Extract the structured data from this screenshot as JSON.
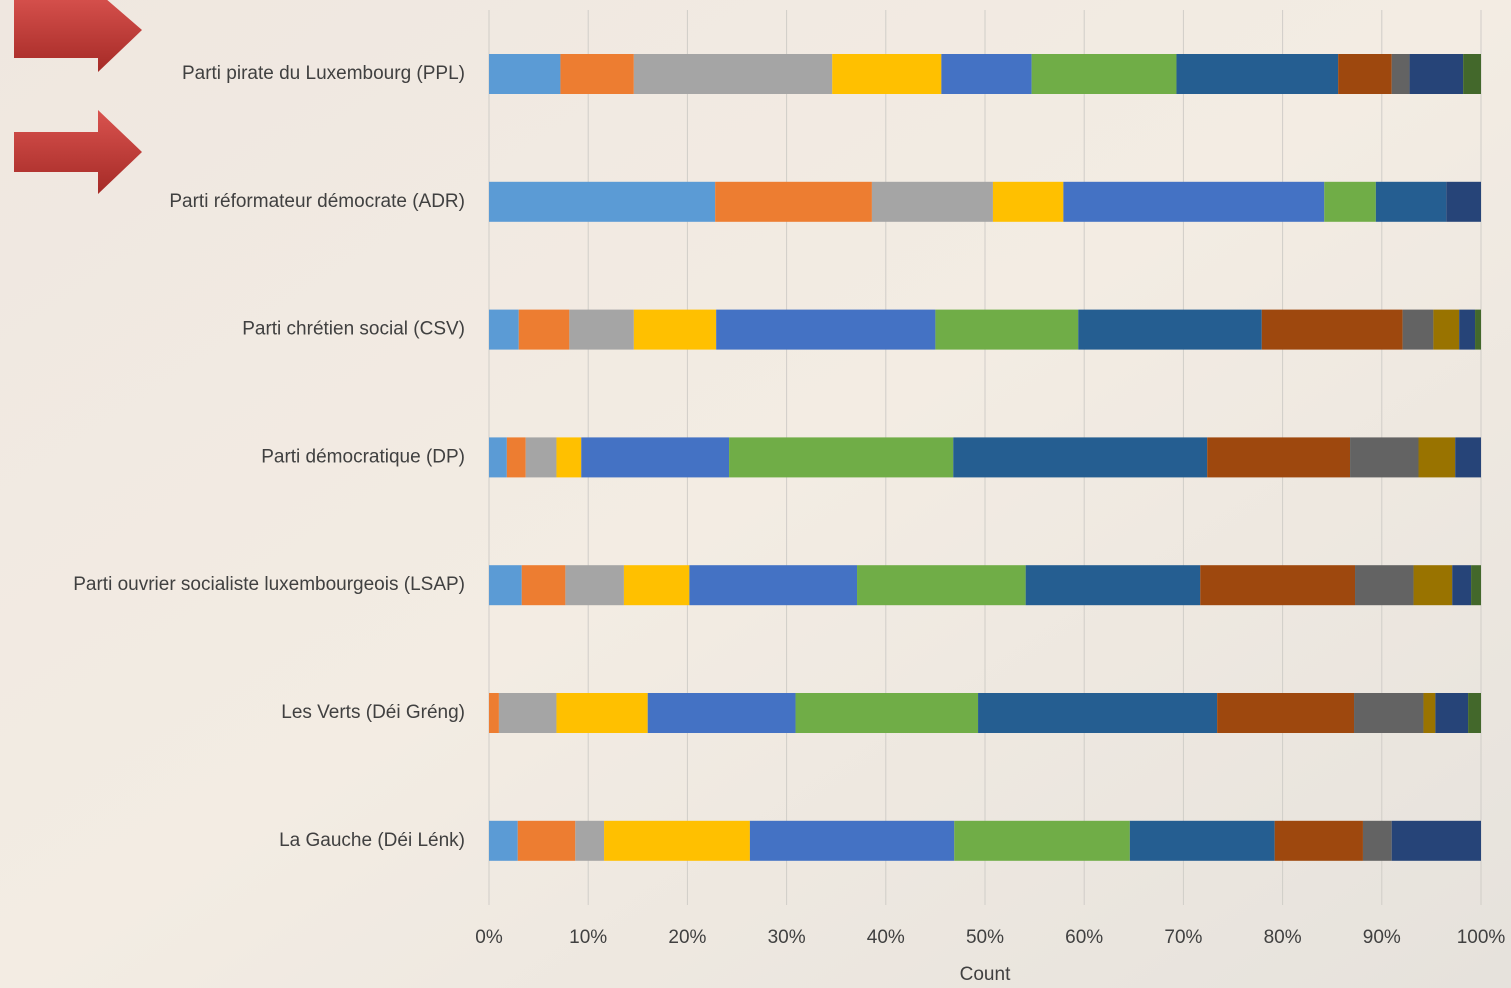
{
  "chart_data": {
    "type": "stacked_bar_100",
    "orientation": "horizontal",
    "x_label": "Count",
    "categories": [
      "Parti pirate du Luxembourg (PPL)",
      "Parti réformateur démocrate (ADR)",
      "Parti chrétien social (CSV)",
      "Parti démocratique (DP)",
      "Parti ouvrier socialiste luxembourgeois (LSAP)",
      "Les Verts (Déi Gréng)",
      "La Gauche (Déi Lénk)"
    ],
    "series": [
      {
        "color": "#5b9bd5",
        "values": [
          7.2,
          22.8,
          3.0,
          1.8,
          3.3,
          0,
          2.9
        ]
      },
      {
        "color": "#ed7d31",
        "values": [
          7.4,
          15.8,
          5.1,
          1.9,
          4.4,
          1.0,
          5.8
        ]
      },
      {
        "color": "#a5a5a5",
        "values": [
          20.0,
          12.2,
          6.5,
          3.1,
          5.9,
          5.8,
          2.9
        ]
      },
      {
        "color": "#ffc000",
        "values": [
          11.0,
          7.1,
          8.3,
          2.5,
          6.6,
          9.2,
          14.7
        ]
      },
      {
        "color": "#4472c4",
        "values": [
          9.1,
          26.3,
          22.1,
          14.9,
          16.9,
          14.9,
          20.6
        ]
      },
      {
        "color": "#70ad47",
        "values": [
          14.6,
          5.2,
          14.4,
          22.6,
          17.0,
          18.4,
          17.7
        ]
      },
      {
        "color": "#255e91",
        "values": [
          16.3,
          7.1,
          18.5,
          25.6,
          17.6,
          24.1,
          14.6
        ]
      },
      {
        "color": "#9e480e",
        "values": [
          5.4,
          0,
          14.2,
          14.4,
          15.6,
          13.8,
          8.9
        ]
      },
      {
        "color": "#636363",
        "values": [
          1.8,
          0,
          3.1,
          6.9,
          5.9,
          7.0,
          2.9
        ]
      },
      {
        "color": "#997300",
        "values": [
          0,
          0,
          2.6,
          3.7,
          3.9,
          1.2,
          0
        ]
      },
      {
        "color": "#264478",
        "values": [
          5.4,
          3.5,
          1.6,
          2.6,
          1.9,
          3.3,
          9.0
        ]
      },
      {
        "color": "#43682b",
        "values": [
          1.8,
          0,
          0.6,
          0,
          1.0,
          1.3,
          0
        ]
      }
    ],
    "xlim": [
      0,
      100
    ],
    "xticks": [
      {
        "value": 0,
        "label": "0%"
      },
      {
        "value": 10,
        "label": "10%"
      },
      {
        "value": 20,
        "label": "20%"
      },
      {
        "value": 30,
        "label": "30%"
      },
      {
        "value": 40,
        "label": "40%"
      },
      {
        "value": 50,
        "label": "50%"
      },
      {
        "value": 60,
        "label": "60%"
      },
      {
        "value": 70,
        "label": "70%"
      },
      {
        "value": 80,
        "label": "80%"
      },
      {
        "value": 90,
        "label": "90%"
      },
      {
        "value": 100,
        "label": "100%"
      }
    ],
    "grid": true
  }
}
